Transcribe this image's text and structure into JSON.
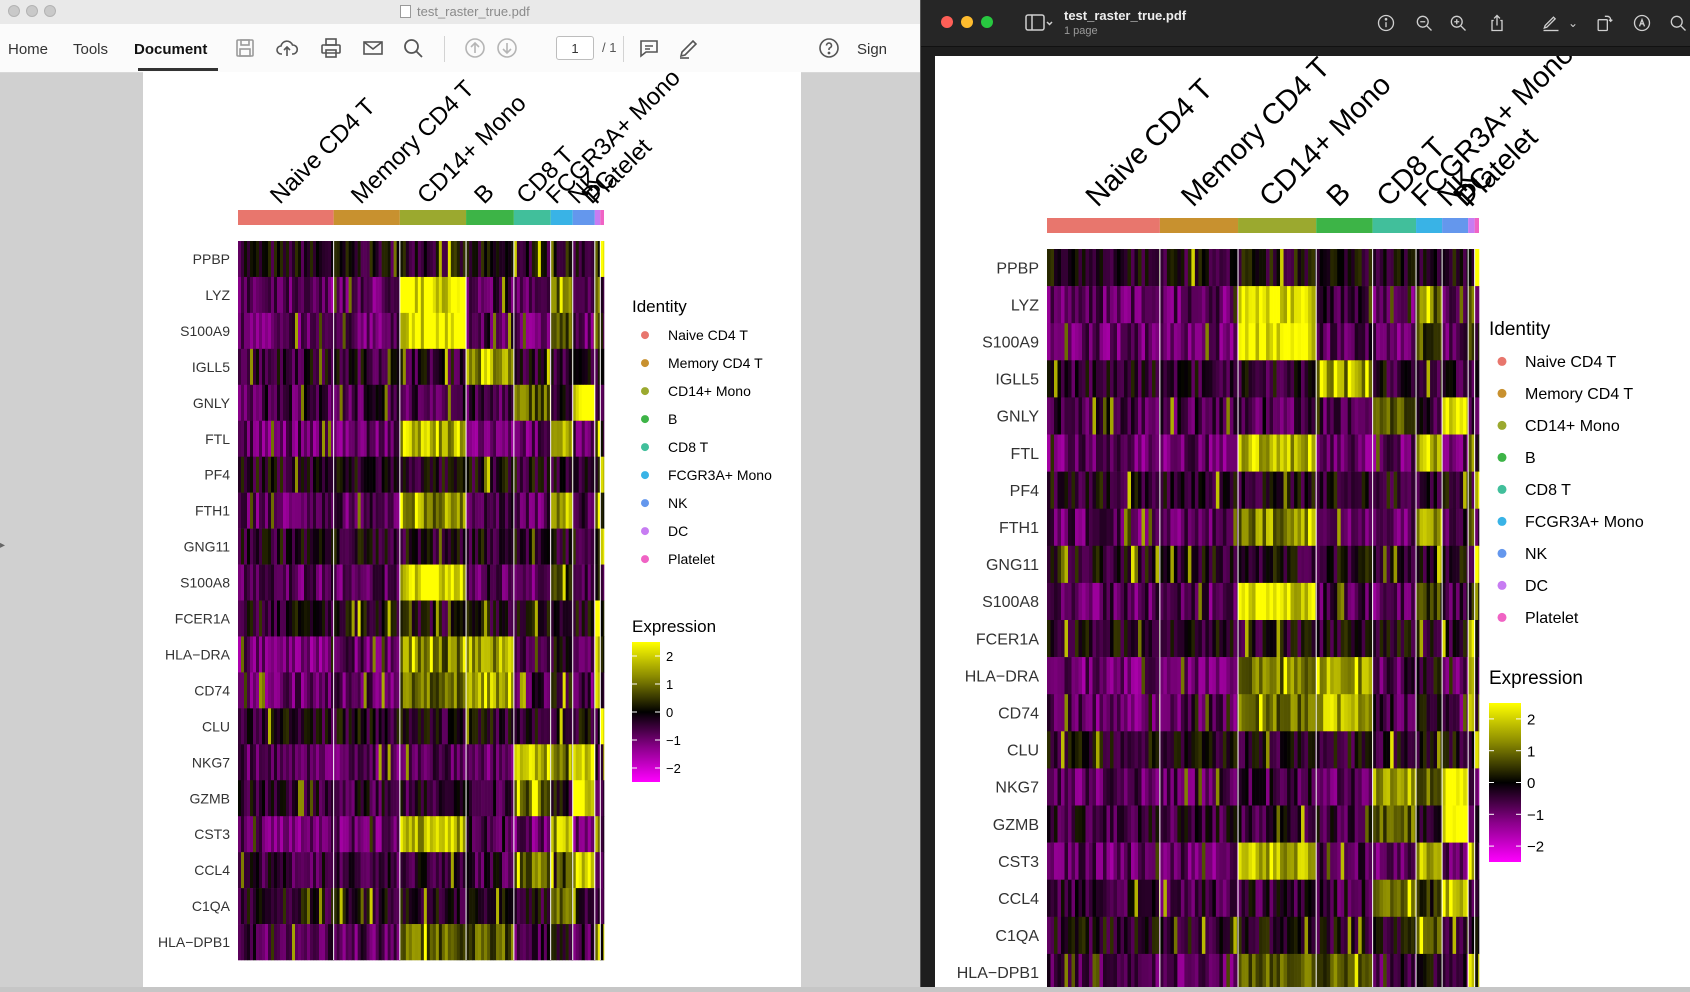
{
  "acrobat": {
    "window_title": "test_raster_true.pdf",
    "tabs": [
      {
        "label": "Home"
      },
      {
        "label": "Tools"
      },
      {
        "label": "Document"
      }
    ],
    "page_current": "1",
    "page_total": "/ 1",
    "sign_label": "Sign",
    "icons": [
      "save-icon",
      "cloud-upload-icon",
      "print-icon",
      "email-icon",
      "search-icon",
      "page-up-icon",
      "page-down-icon",
      "comment-icon",
      "highlight-pen-icon",
      "help-icon"
    ]
  },
  "preview": {
    "title": "test_raster_true.pdf",
    "subtitle": "1 page",
    "icons": [
      "sidebar-icon",
      "info-icon",
      "zoom-out-icon",
      "zoom-in-icon",
      "share-icon",
      "markup-pen-icon",
      "rotate-icon",
      "annotate-icon",
      "search-icon"
    ]
  },
  "heatmap": {
    "groups": [
      {
        "name": "Naive CD4 T",
        "color": "#e8766d"
      },
      {
        "name": "Memory CD4 T",
        "color": "#c8912f"
      },
      {
        "name": "CD14+ Mono",
        "color": "#9ba92f"
      },
      {
        "name": "B",
        "color": "#3db447"
      },
      {
        "name": "CD8 T",
        "color": "#41bf9b"
      },
      {
        "name": "FCGR3A+ Mono",
        "color": "#39b3e6"
      },
      {
        "name": "NK",
        "color": "#6497ed"
      },
      {
        "name": "DC",
        "color": "#c77cf2"
      },
      {
        "name": "Platelet",
        "color": "#f063c4"
      }
    ],
    "group_fractions": [
      0.26,
      0.18,
      0.18,
      0.13,
      0.1,
      0.06,
      0.06,
      0.015,
      0.01
    ],
    "genes": [
      "PPBP",
      "LYZ",
      "S100A9",
      "IGLL5",
      "GNLY",
      "FTL",
      "PF4",
      "FTH1",
      "GNG11",
      "S100A8",
      "FCER1A",
      "HLA−DRA",
      "CD74",
      "CLU",
      "NKG7",
      "GZMB",
      "CST3",
      "CCL4",
      "C1QA",
      "HLA−DPB1"
    ],
    "identity_title": "Identity",
    "expression_title": "Expression",
    "expression_ticks": [
      "2",
      "1",
      "0",
      "−1",
      "−2"
    ],
    "color_scale": {
      "low": "#ff00ff",
      "mid": "#000000",
      "high": "#ffff00"
    }
  }
}
